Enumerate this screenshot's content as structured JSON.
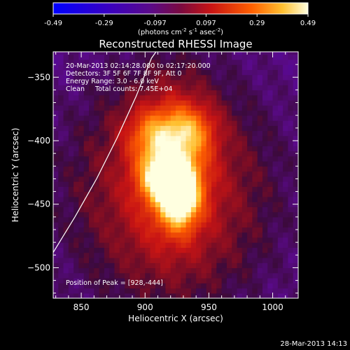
{
  "colorbar": {
    "tick_labels": [
      "-0.49",
      "-0.29",
      "-0.097",
      "0.097",
      "0.29",
      "0.49"
    ],
    "min": -0.49,
    "max": 0.49,
    "units_prefix": "(photons cm",
    "units_exp1": "-2",
    "units_mid": " s",
    "units_exp2": "-1",
    "units_mid2": " asec",
    "units_exp3": "-2",
    "units_suffix": ")"
  },
  "title": "Reconstructed RHESSI Image",
  "annotations": {
    "time_range": "20-Mar-2013 02:14:28.000 to 02:17:20.000",
    "detectors": "Detectors: 3F 5F 6F 7F 8F 9F, Att 0",
    "energy": "Energy Range: 3.0 - 6.0 keV",
    "clean": "Clean     Total counts: 7.45E+04",
    "peak": "Position of Peak = [928,-444]"
  },
  "footer": {
    "timestamp": "28-Mar-2013 14:13"
  },
  "chart_data": {
    "type": "heatmap",
    "title": "Reconstructed RHESSI Image",
    "xlabel": "Heliocentric X (arcsec)",
    "ylabel": "Heliocentric Y (arcsec)",
    "xlim": [
      828,
      1020
    ],
    "ylim": [
      -524,
      -330
    ],
    "x_ticks": [
      850,
      900,
      950,
      1000
    ],
    "y_ticks": [
      -350,
      -400,
      -450,
      -500
    ],
    "color_range": [
      -0.49,
      0.49
    ],
    "colormap": "rhessi-red-temperature",
    "peak_position": [
      928,
      -444
    ],
    "sources": [
      {
        "x": 927,
        "y": -443,
        "amp": 0.49,
        "sx": 10,
        "sy": 16
      },
      {
        "x": 915,
        "y": -428,
        "amp": 0.4,
        "sx": 12,
        "sy": 12
      },
      {
        "x": 922,
        "y": -418,
        "amp": 0.22,
        "sx": 20,
        "sy": 40
      },
      {
        "x": 905,
        "y": -395,
        "amp": 0.2,
        "sx": 14,
        "sy": 14
      },
      {
        "x": 935,
        "y": -392,
        "amp": 0.22,
        "sx": 14,
        "sy": 14
      },
      {
        "x": 920,
        "y": -440,
        "amp": 0.22,
        "sx": 55,
        "sy": 62
      }
    ],
    "limb_curve": [
      [
        828,
        -488
      ],
      [
        845,
        -460
      ],
      [
        862,
        -430
      ],
      [
        878,
        -398
      ],
      [
        893,
        -365
      ],
      [
        905,
        -335
      ],
      [
        910,
        -328
      ]
    ]
  }
}
